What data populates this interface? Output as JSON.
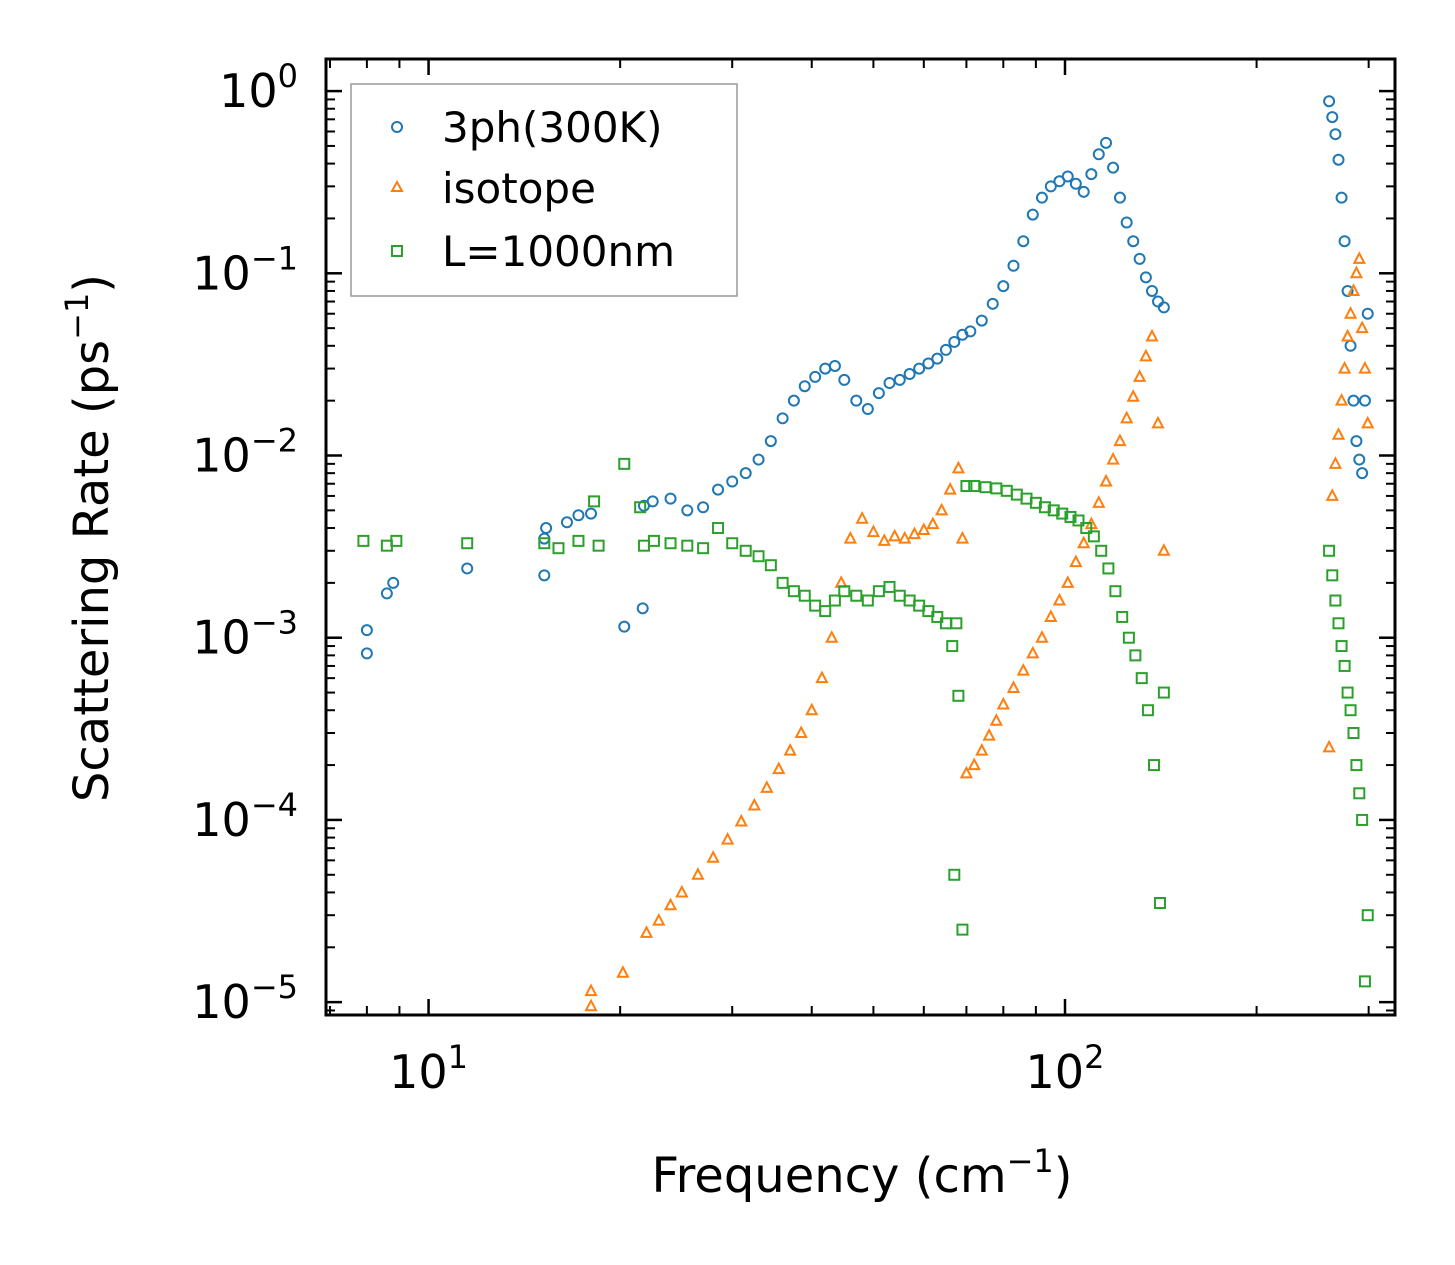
{
  "chart_data": {
    "type": "scatter",
    "xscale": "log",
    "yscale": "log",
    "xlim": [
      6.9,
      330
    ],
    "ylim": [
      8.5e-06,
      1.5
    ],
    "xlabel": "Frequency (cm",
    "xlabel_sup": "−1",
    "xlabel_tail": ")",
    "ylabel": "Scattering Rate (ps",
    "ylabel_sup": "−1",
    "ylabel_tail": ")",
    "x_ticks": [
      {
        "value": 10,
        "base": "10",
        "exp": "1"
      },
      {
        "value": 100,
        "base": "10",
        "exp": "2"
      }
    ],
    "y_ticks": [
      {
        "value": 1,
        "base": "10",
        "exp": "0"
      },
      {
        "value": 0.1,
        "base": "10",
        "exp": "−1"
      },
      {
        "value": 0.01,
        "base": "10",
        "exp": "−2"
      },
      {
        "value": 0.001,
        "base": "10",
        "exp": "−3"
      },
      {
        "value": 0.0001,
        "base": "10",
        "exp": "−4"
      },
      {
        "value": 1e-05,
        "base": "10",
        "exp": "−5"
      }
    ],
    "legend_position": "top-left",
    "series": [
      {
        "name": "3ph(300K)",
        "marker": "circle",
        "color": "#1f77b4",
        "x": [
          8.0,
          8.0,
          8.6,
          8.8,
          11.5,
          15.2,
          15.2,
          15.3,
          16.5,
          17.2,
          18.0,
          20.3,
          21.7,
          21.8,
          22.5,
          24.0,
          25.5,
          27.0,
          28.5,
          30.0,
          31.5,
          33.0,
          34.5,
          36.0,
          37.5,
          39.0,
          40.5,
          42.0,
          43.5,
          45.0,
          47.0,
          49.0,
          51.0,
          53.0,
          55.0,
          57.0,
          59.0,
          61.0,
          63.0,
          65.0,
          67.0,
          69.0,
          71.0,
          74.0,
          77.0,
          80.0,
          83.0,
          86.0,
          89.0,
          92.0,
          95.0,
          98.0,
          101.0,
          104.0,
          107.0,
          110.0,
          113.0,
          116.0,
          119.0,
          122.0,
          125.0,
          128.0,
          131.0,
          134.0,
          137.0,
          140.0,
          143.0,
          260.0,
          263.0,
          266.0,
          269.0,
          272.0,
          275.0,
          278.0,
          281.0,
          284.0,
          287.0,
          290.0,
          293.0,
          296.0,
          299.0
        ],
        "y": [
          0.00082,
          0.0011,
          0.00175,
          0.002,
          0.0024,
          0.0022,
          0.0035,
          0.004,
          0.0043,
          0.0047,
          0.0048,
          0.00115,
          0.00145,
          0.0053,
          0.0056,
          0.0058,
          0.005,
          0.0052,
          0.0065,
          0.0072,
          0.008,
          0.0095,
          0.012,
          0.016,
          0.02,
          0.024,
          0.027,
          0.03,
          0.031,
          0.026,
          0.02,
          0.018,
          0.022,
          0.025,
          0.026,
          0.028,
          0.03,
          0.032,
          0.034,
          0.038,
          0.042,
          0.046,
          0.048,
          0.055,
          0.068,
          0.085,
          0.11,
          0.15,
          0.21,
          0.26,
          0.3,
          0.32,
          0.34,
          0.31,
          0.28,
          0.35,
          0.45,
          0.52,
          0.38,
          0.26,
          0.19,
          0.15,
          0.12,
          0.095,
          0.08,
          0.07,
          0.065,
          0.88,
          0.72,
          0.58,
          0.42,
          0.26,
          0.15,
          0.08,
          0.04,
          0.02,
          0.012,
          0.0095,
          0.008,
          0.02,
          0.06
        ],
        "y_alt": [
          null
        ]
      },
      {
        "name": "isotope",
        "marker": "triangle",
        "color": "#ff7f0e",
        "x": [
          18.0,
          18.0,
          20.2,
          22.0,
          23.0,
          24.0,
          25.0,
          26.5,
          28.0,
          29.5,
          31.0,
          32.5,
          34.0,
          35.5,
          37.0,
          38.5,
          40.0,
          41.5,
          43.0,
          44.5,
          46.0,
          48.0,
          50.0,
          52.0,
          54.0,
          56.0,
          58.0,
          60.0,
          62.0,
          64.0,
          66.0,
          68.0,
          69.0,
          70.0,
          72.0,
          74.0,
          76.0,
          78.0,
          80.0,
          83.0,
          86.0,
          89.0,
          92.0,
          95.0,
          98.0,
          101.0,
          104.0,
          107.0,
          110.0,
          113.0,
          116.0,
          119.0,
          122.0,
          125.0,
          128.0,
          131.0,
          134.0,
          137.0,
          140.0,
          143.0,
          260.0,
          263.0,
          266.0,
          269.0,
          272.0,
          275.0,
          278.0,
          281.0,
          284.0,
          287.0,
          290.0,
          293.0,
          296.0,
          299.0
        ],
        "y": [
          9.5e-06,
          1.15e-05,
          1.45e-05,
          2.4e-05,
          2.8e-05,
          3.4e-05,
          4e-05,
          5e-05,
          6.2e-05,
          7.8e-05,
          9.8e-05,
          0.00012,
          0.00015,
          0.00019,
          0.00024,
          0.0003,
          0.0004,
          0.0006,
          0.001,
          0.002,
          0.0035,
          0.0045,
          0.0038,
          0.0034,
          0.0036,
          0.0035,
          0.0037,
          0.0039,
          0.0042,
          0.005,
          0.0065,
          0.0085,
          0.0035,
          0.00018,
          0.0002,
          0.00024,
          0.00029,
          0.00035,
          0.00043,
          0.00053,
          0.00066,
          0.00082,
          0.001,
          0.0013,
          0.0016,
          0.002,
          0.0026,
          0.0033,
          0.0042,
          0.0055,
          0.0072,
          0.0095,
          0.012,
          0.016,
          0.021,
          0.027,
          0.035,
          0.045,
          0.015,
          0.003,
          0.00025,
          0.006,
          0.009,
          0.013,
          0.02,
          0.03,
          0.045,
          0.06,
          0.08,
          0.1,
          0.12,
          0.05,
          0.03,
          0.015
        ]
      },
      {
        "name": "L=1000nm",
        "marker": "square",
        "color": "#2ca02c",
        "x": [
          7.9,
          8.6,
          8.9,
          11.5,
          15.2,
          16.0,
          17.2,
          18.2,
          18.5,
          20.3,
          21.5,
          21.8,
          22.6,
          24.0,
          25.5,
          27.0,
          28.5,
          30.0,
          31.5,
          33.0,
          34.5,
          36.0,
          37.5,
          39.0,
          40.5,
          42.0,
          43.5,
          45.0,
          47.0,
          49.0,
          51.0,
          53.0,
          55.0,
          57.0,
          59.0,
          61.0,
          63.0,
          65.0,
          66.5,
          67.0,
          67.5,
          68.0,
          69.0,
          70.0,
          72.0,
          75.0,
          78.0,
          81.0,
          84.0,
          87.0,
          90.0,
          93.0,
          96.0,
          99.0,
          102.0,
          105.0,
          108.0,
          111.0,
          114.0,
          117.0,
          120.0,
          123.0,
          126.0,
          129.0,
          132.0,
          135.0,
          138.0,
          141.0,
          143.0,
          260.0,
          263.0,
          266.0,
          269.0,
          272.0,
          275.0,
          278.0,
          281.0,
          284.0,
          287.0,
          290.0,
          293.0,
          296.0,
          299.0
        ],
        "y": [
          0.0034,
          0.0032,
          0.0034,
          0.0033,
          0.0033,
          0.0031,
          0.0034,
          0.0056,
          0.0032,
          0.009,
          0.0052,
          0.0032,
          0.0034,
          0.0033,
          0.0032,
          0.0031,
          0.004,
          0.0033,
          0.003,
          0.0028,
          0.0025,
          0.002,
          0.0018,
          0.0017,
          0.0015,
          0.0014,
          0.0016,
          0.0018,
          0.0017,
          0.0016,
          0.0018,
          0.0019,
          0.0017,
          0.0016,
          0.0015,
          0.0014,
          0.0013,
          0.0012,
          0.0009,
          5e-05,
          0.0012,
          0.00048,
          2.5e-05,
          0.0068,
          0.0068,
          0.0067,
          0.0066,
          0.0064,
          0.0061,
          0.0058,
          0.0055,
          0.0052,
          0.005,
          0.0048,
          0.0046,
          0.0044,
          0.004,
          0.0036,
          0.003,
          0.0024,
          0.0018,
          0.0013,
          0.001,
          0.0008,
          0.0006,
          0.0004,
          0.0002,
          3.5e-05,
          0.0005,
          0.003,
          0.0022,
          0.0016,
          0.0012,
          0.0009,
          0.0007,
          0.0005,
          0.0004,
          0.0003,
          0.0002,
          0.00014,
          0.0001,
          1.3e-05,
          3e-05
        ]
      }
    ]
  }
}
